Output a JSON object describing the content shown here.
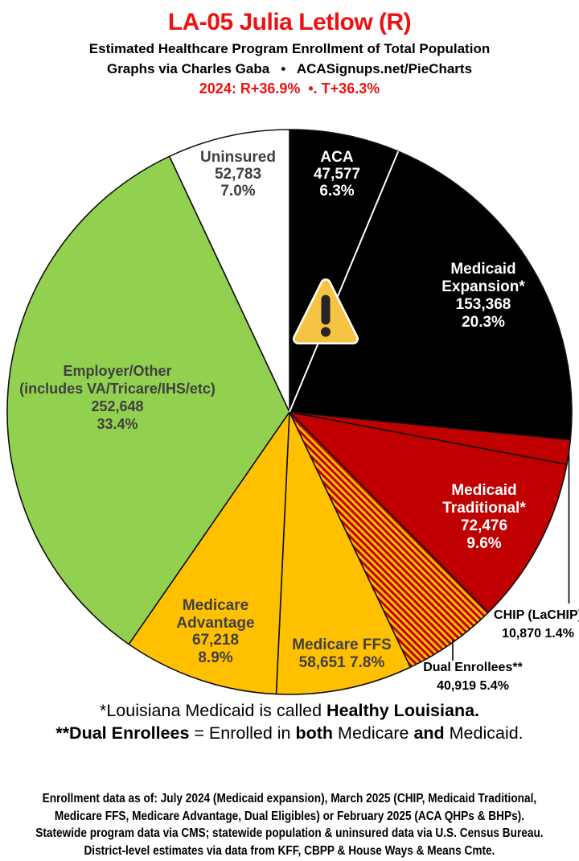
{
  "header": {
    "title": "LA-05 Julia Letlow (R)",
    "subtitle": "Estimated Healthcare Program Enrollment of Total Population",
    "credit": "Graphs via Charles Gaba   •   ACASignups.net/PieCharts",
    "partisan": "2024: R+36.9%  •. T+36.3%"
  },
  "colors": {
    "accent_red": "#EE1111",
    "outline": "#111111",
    "black_slice": "#000000",
    "dark_red": "#C00000",
    "gold": "#FFC000",
    "green": "#92D050",
    "white": "#FFFFFF",
    "gray_text": "#404040",
    "warning_amber": "#F6C344",
    "warning_glyph": "#262626",
    "divider_white": "#FFFFFF"
  },
  "chart_data": {
    "type": "pie",
    "title": "LA-05 Julia Letlow (R) — Estimated Healthcare Program Enrollment of Total Population",
    "start_angle": "12 o'clock, clockwise",
    "slices": [
      {
        "id": "aca",
        "label": "ACA",
        "enrollment": "47,577",
        "percent": "6.3%",
        "value": 6.3,
        "color": "#000000",
        "lines": [
          "ACA",
          "47,577",
          "6.3%"
        ]
      },
      {
        "id": "medicaid-expansion",
        "label": "Medicaid Expansion*",
        "enrollment": "153,368",
        "percent": "20.3%",
        "value": 20.3,
        "color": "#000000",
        "lines": [
          "Medicaid",
          "Expansion*",
          "153,368",
          "20.3%"
        ]
      },
      {
        "id": "chip",
        "label": "CHIP (LaCHIP)",
        "enrollment": "10,870",
        "percent": "1.4%",
        "value": 1.4,
        "color": "#C00000",
        "lines": [
          "CHIP (LaCHIP)",
          "10,870 1.4%"
        ]
      },
      {
        "id": "medicaid-traditional",
        "label": "Medicaid Traditional*",
        "enrollment": "72,476",
        "percent": "9.6%",
        "value": 9.6,
        "color": "#C00000",
        "lines": [
          "Medicaid",
          "Traditional*",
          "72,476",
          "9.6%"
        ]
      },
      {
        "id": "dual-enrollees",
        "label": "Dual Enrollees**",
        "enrollment": "40,919",
        "percent": "5.4%",
        "value": 5.4,
        "color": "hatch",
        "lines": [
          "Dual Enrollees**",
          "40,919 5.4%"
        ]
      },
      {
        "id": "medicare-ffs",
        "label": "Medicare FFS",
        "enrollment": "58,651",
        "percent": "7.8%",
        "value": 7.8,
        "color": "#FFC000",
        "lines": [
          "Medicare FFS",
          "58,651 7.8%"
        ]
      },
      {
        "id": "medicare-advantage",
        "label": "Medicare Advantage",
        "enrollment": "67,218",
        "percent": "8.9%",
        "value": 8.9,
        "color": "#FFC000",
        "lines": [
          "Medicare",
          "Advantage",
          "67,218",
          "8.9%"
        ]
      },
      {
        "id": "employer-other",
        "label": "Employer/Other (includes VA/Tricare/IHS/etc)",
        "enrollment": "252,648",
        "percent": "33.4%",
        "value": 33.4,
        "color": "#92D050",
        "lines": [
          "Employer/Other",
          "(includes VA/Tricare/IHS/etc)",
          "252,648",
          "33.4%"
        ]
      },
      {
        "id": "uninsured",
        "label": "Uninsured",
        "enrollment": "52,783",
        "percent": "7.0%",
        "value": 7.0,
        "color": "#FFFFFF",
        "lines": [
          "Uninsured",
          "52,783",
          "7.0%"
        ]
      }
    ],
    "warning_icon": "warning-triangle over ACA/Medicaid Expansion divider"
  },
  "footnotes": [
    [
      {
        "t": "*Louisiana Medicaid is called ",
        "b": false
      },
      {
        "t": "Healthy Louisiana.",
        "b": true
      }
    ],
    [
      {
        "t": "**Dual Enrollees",
        "b": true
      },
      {
        "t": " = Enrolled in ",
        "b": false
      },
      {
        "t": "both",
        "b": true
      },
      {
        "t": " Medicare ",
        "b": false
      },
      {
        "t": "and",
        "b": true
      },
      {
        "t": " Medicaid.",
        "b": false
      }
    ]
  ],
  "footer_lines": [
    "Enrollment data as of: July 2024 (Medicaid expansion), March 2025 (CHIP, Medicaid Traditional,",
    "Medicare FFS, Medicare Advantage, Dual Eligibles) or February 2025 (ACA QHPs & BHPs).",
    "Statewide program data via CMS; statewide population & uninsured data via U.S. Census Bureau.",
    "District-level estimates via data from KFF, CBPP & House Ways & Means Cmte."
  ]
}
